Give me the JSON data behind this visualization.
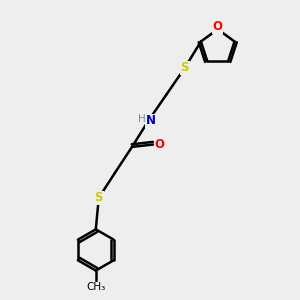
{
  "bg_color": "#eeeeee",
  "atom_colors": {
    "C": "#000000",
    "H": "#5a9a9a",
    "N": "#0000cc",
    "O": "#ff0000",
    "S": "#cccc00"
  },
  "bond_color": "#000000",
  "bond_width": 1.8,
  "figsize": [
    3.0,
    3.0
  ],
  "dpi": 100,
  "xlim": [
    0,
    10
  ],
  "ylim": [
    0,
    10
  ]
}
